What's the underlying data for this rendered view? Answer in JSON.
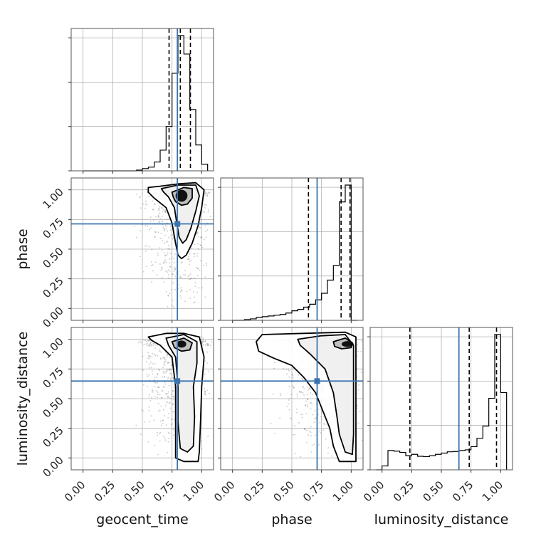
{
  "chart_data": {
    "type": "corner",
    "parameters": [
      "geocent_time",
      "phase",
      "luminosity_distance"
    ],
    "truth_color": "#3b75af",
    "x_ticks": [
      "0.00",
      "0.25",
      "0.50",
      "0.75",
      "1.00"
    ],
    "y_ticks": [
      "0.00",
      "0.25",
      "0.50",
      "0.75",
      "1.00"
    ],
    "axis_range": [
      -0.1,
      1.1
    ],
    "grid": true,
    "truths": {
      "geocent_time": 0.795,
      "phase": 0.713,
      "luminosity_distance": 0.648
    },
    "quantiles": {
      "geocent_time": [
        0.725,
        0.82,
        0.905
      ],
      "phase": [
        0.64,
        0.915,
        0.99
      ],
      "luminosity_distance": [
        0.235,
        0.735,
        0.965
      ]
    },
    "marginals": [
      {
        "parameter": "geocent_time",
        "bin_edges": [
          0.0,
          0.05,
          0.1,
          0.15,
          0.2,
          0.25,
          0.3,
          0.35,
          0.4,
          0.45,
          0.5,
          0.55,
          0.6,
          0.65,
          0.7,
          0.75,
          0.8,
          0.85,
          0.9,
          0.95,
          1.0,
          1.05
        ],
        "counts": [
          0,
          0,
          0,
          0,
          0,
          0,
          0,
          0,
          0,
          1,
          3,
          5,
          12,
          28,
          60,
          132,
          183,
          158,
          83,
          35,
          9
        ],
        "ymax": 183
      },
      {
        "parameter": "phase",
        "bin_edges": [
          0.0,
          0.05,
          0.1,
          0.15,
          0.2,
          0.25,
          0.3,
          0.35,
          0.4,
          0.45,
          0.5,
          0.55,
          0.6,
          0.65,
          0.7,
          0.75,
          0.8,
          0.85,
          0.9,
          0.95,
          1.0,
          1.05
        ],
        "counts": [
          0,
          0,
          1,
          2,
          4,
          5,
          6,
          7,
          8,
          10,
          13,
          15,
          18,
          22,
          28,
          37,
          55,
          75,
          162,
          185,
          0
        ],
        "ymax": 185
      },
      {
        "parameter": "luminosity_distance",
        "bin_edges": [
          -0.05,
          0.0,
          0.05,
          0.1,
          0.15,
          0.2,
          0.25,
          0.3,
          0.35,
          0.4,
          0.45,
          0.5,
          0.55,
          0.6,
          0.65,
          0.7,
          0.75,
          0.8,
          0.85,
          0.9,
          0.95,
          1.0,
          1.05
        ],
        "counts": [
          0,
          12,
          60,
          58,
          54,
          44,
          48,
          42,
          41,
          44,
          48,
          52,
          56,
          57,
          60,
          62,
          72,
          98,
          136,
          222,
          420,
          240
        ],
        "ymax": 420
      }
    ],
    "panels_2d": [
      {
        "x": "geocent_time",
        "y": "phase",
        "peak": [
          0.83,
          0.97
        ],
        "core": {
          "cx": 0.83,
          "cy": 0.95,
          "rx": 0.05,
          "ry": 0.05
        },
        "contours": [
          [
            [
              0.55,
              1.02
            ],
            [
              0.65,
              1.03
            ],
            [
              0.8,
              1.05
            ],
            [
              0.95,
              1.06
            ],
            [
              1.02,
              1.0
            ],
            [
              1.0,
              0.85
            ],
            [
              0.97,
              0.7
            ],
            [
              0.92,
              0.55
            ],
            [
              0.87,
              0.45
            ],
            [
              0.83,
              0.42
            ],
            [
              0.8,
              0.45
            ],
            [
              0.78,
              0.55
            ],
            [
              0.75,
              0.72
            ],
            [
              0.7,
              0.85
            ],
            [
              0.6,
              0.93
            ],
            [
              0.55,
              0.98
            ]
          ],
          [
            [
              0.66,
              1.01
            ],
            [
              0.8,
              1.04
            ],
            [
              0.95,
              1.04
            ],
            [
              0.98,
              0.95
            ],
            [
              0.95,
              0.82
            ],
            [
              0.91,
              0.68
            ],
            [
              0.87,
              0.58
            ],
            [
              0.84,
              0.55
            ],
            [
              0.81,
              0.6
            ],
            [
              0.79,
              0.72
            ],
            [
              0.77,
              0.85
            ],
            [
              0.72,
              0.94
            ],
            [
              0.68,
              0.98
            ]
          ],
          [
            [
              0.75,
              0.98
            ],
            [
              0.85,
              1.02
            ],
            [
              0.92,
              1.01
            ],
            [
              0.92,
              0.93
            ],
            [
              0.88,
              0.88
            ],
            [
              0.83,
              0.87
            ],
            [
              0.78,
              0.9
            ],
            [
              0.76,
              0.94
            ]
          ]
        ],
        "points": {
          "xmin": 0.35,
          "xmax": 1.02,
          "ymin": -0.03,
          "ymax": 1.02,
          "weight_x": 0.82,
          "weight_y": 0.9
        }
      },
      {
        "x": "geocent_time",
        "y": "luminosity_distance",
        "peak": [
          0.83,
          0.96
        ],
        "core": {
          "cx": 0.83,
          "cy": 0.96,
          "rx": 0.04,
          "ry": 0.03
        },
        "contours": [
          [
            [
              0.55,
              1.02
            ],
            [
              0.7,
              1.05
            ],
            [
              0.85,
              1.05
            ],
            [
              0.98,
              1.02
            ],
            [
              1.02,
              0.85
            ],
            [
              1.0,
              0.6
            ],
            [
              0.99,
              0.3
            ],
            [
              0.98,
              0.05
            ],
            [
              0.97,
              -0.03
            ],
            [
              0.85,
              -0.03
            ],
            [
              0.78,
              0.0
            ],
            [
              0.78,
              0.3
            ],
            [
              0.78,
              0.6
            ],
            [
              0.75,
              0.85
            ],
            [
              0.65,
              0.95
            ],
            [
              0.58,
              0.99
            ]
          ],
          [
            [
              0.7,
              1.01
            ],
            [
              0.85,
              1.04
            ],
            [
              0.96,
              0.98
            ],
            [
              0.96,
              0.8
            ],
            [
              0.93,
              0.6
            ],
            [
              0.94,
              0.35
            ],
            [
              0.93,
              0.1
            ],
            [
              0.88,
              0.05
            ],
            [
              0.82,
              0.08
            ],
            [
              0.8,
              0.3
            ],
            [
              0.8,
              0.6
            ],
            [
              0.78,
              0.85
            ],
            [
              0.72,
              0.95
            ]
          ],
          [
            [
              0.75,
              0.98
            ],
            [
              0.85,
              1.01
            ],
            [
              0.92,
              0.97
            ],
            [
              0.9,
              0.91
            ],
            [
              0.83,
              0.9
            ],
            [
              0.77,
              0.93
            ]
          ]
        ],
        "points": {
          "xmin": 0.35,
          "xmax": 1.02,
          "ymin": -0.03,
          "ymax": 1.02,
          "weight_x": 0.82,
          "weight_y": 0.5
        }
      },
      {
        "x": "phase",
        "y": "luminosity_distance",
        "peak": [
          0.97,
          0.96
        ],
        "core": {
          "cx": 0.97,
          "cy": 0.96,
          "rx": 0.05,
          "ry": 0.025
        },
        "contours": [
          [
            [
              0.2,
              0.98
            ],
            [
              0.25,
              1.04
            ],
            [
              0.6,
              1.05
            ],
            [
              0.95,
              1.06
            ],
            [
              1.04,
              1.02
            ],
            [
              1.04,
              0.6
            ],
            [
              1.04,
              0.2
            ],
            [
              1.04,
              -0.03
            ],
            [
              0.9,
              -0.03
            ],
            [
              0.85,
              0.1
            ],
            [
              0.82,
              0.25
            ],
            [
              0.7,
              0.55
            ],
            [
              0.6,
              0.68
            ],
            [
              0.5,
              0.78
            ],
            [
              0.35,
              0.84
            ],
            [
              0.22,
              0.9
            ]
          ],
          [
            [
              0.55,
              1.0
            ],
            [
              0.75,
              1.03
            ],
            [
              0.95,
              1.04
            ],
            [
              1.02,
              0.95
            ],
            [
              1.02,
              0.6
            ],
            [
              1.02,
              0.2
            ],
            [
              1.01,
              0.03
            ],
            [
              0.95,
              0.05
            ],
            [
              0.9,
              0.2
            ],
            [
              0.88,
              0.35
            ],
            [
              0.85,
              0.55
            ],
            [
              0.78,
              0.75
            ],
            [
              0.65,
              0.88
            ],
            [
              0.57,
              0.95
            ]
          ],
          [
            [
              0.85,
              0.98
            ],
            [
              0.95,
              1.01
            ],
            [
              1.01,
              0.97
            ],
            [
              1.0,
              0.93
            ],
            [
              0.92,
              0.92
            ],
            [
              0.86,
              0.94
            ]
          ]
        ],
        "points": {
          "xmin": 0.05,
          "xmax": 1.03,
          "ymin": -0.03,
          "ymax": 1.02,
          "weight_x": 0.85,
          "weight_y": 0.55
        }
      }
    ]
  }
}
